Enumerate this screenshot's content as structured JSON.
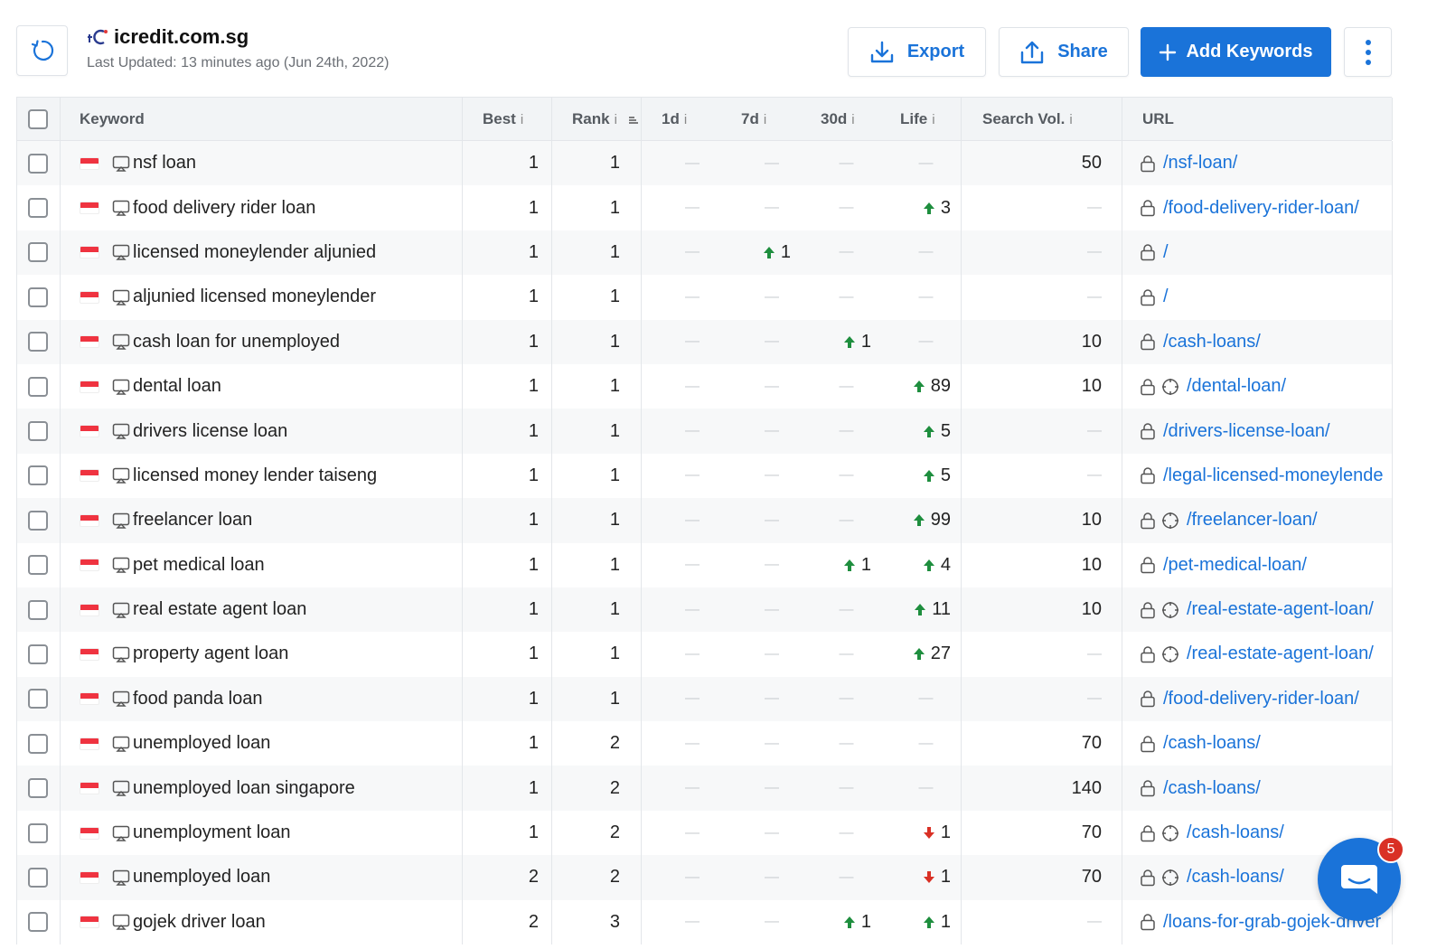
{
  "header": {
    "site_name": "icredit.com.sg",
    "last_updated": "Last Updated: 13 minutes ago (Jun 24th, 2022)",
    "export_label": "Export",
    "share_label": "Share",
    "add_keywords_label": "Add Keywords"
  },
  "colors": {
    "accent": "#1a73d9",
    "up": "#1e8e3e",
    "down": "#d93025"
  },
  "columns": {
    "keyword": "Keyword",
    "best": "Best",
    "rank": "Rank",
    "d1": "1d",
    "d7": "7d",
    "d30": "30d",
    "life": "Life",
    "search_vol": "Search Vol.",
    "url": "URL",
    "info_glyph": "i"
  },
  "dash": "—",
  "rows": [
    {
      "keyword": "nsf loan",
      "best": "1",
      "rank": "1",
      "d1": null,
      "d7": null,
      "d30": null,
      "life": null,
      "vol": "50",
      "url": "/nsf-loan/",
      "target": false
    },
    {
      "keyword": "food delivery rider loan",
      "best": "1",
      "rank": "1",
      "d1": null,
      "d7": null,
      "d30": null,
      "life": {
        "dir": "up",
        "val": "3"
      },
      "vol": null,
      "url": "/food-delivery-rider-loan/",
      "target": false
    },
    {
      "keyword": "licensed moneylender aljunied",
      "best": "1",
      "rank": "1",
      "d1": null,
      "d7": {
        "dir": "up",
        "val": "1"
      },
      "d30": null,
      "life": null,
      "vol": null,
      "url": "/",
      "target": false
    },
    {
      "keyword": "aljunied licensed moneylender",
      "best": "1",
      "rank": "1",
      "d1": null,
      "d7": null,
      "d30": null,
      "life": null,
      "vol": null,
      "url": "/",
      "target": false
    },
    {
      "keyword": "cash loan for unemployed",
      "best": "1",
      "rank": "1",
      "d1": null,
      "d7": null,
      "d30": {
        "dir": "up",
        "val": "1"
      },
      "life": null,
      "vol": "10",
      "url": "/cash-loans/",
      "target": false
    },
    {
      "keyword": "dental loan",
      "best": "1",
      "rank": "1",
      "d1": null,
      "d7": null,
      "d30": null,
      "life": {
        "dir": "up",
        "val": "89"
      },
      "vol": "10",
      "url": "/dental-loan/",
      "target": true
    },
    {
      "keyword": "drivers license loan",
      "best": "1",
      "rank": "1",
      "d1": null,
      "d7": null,
      "d30": null,
      "life": {
        "dir": "up",
        "val": "5"
      },
      "vol": null,
      "url": "/drivers-license-loan/",
      "target": false
    },
    {
      "keyword": "licensed money lender taiseng",
      "best": "1",
      "rank": "1",
      "d1": null,
      "d7": null,
      "d30": null,
      "life": {
        "dir": "up",
        "val": "5"
      },
      "vol": null,
      "url": "/legal-licensed-moneylende",
      "target": false
    },
    {
      "keyword": "freelancer loan",
      "best": "1",
      "rank": "1",
      "d1": null,
      "d7": null,
      "d30": null,
      "life": {
        "dir": "up",
        "val": "99"
      },
      "vol": "10",
      "url": "/freelancer-loan/",
      "target": true
    },
    {
      "keyword": "pet medical loan",
      "best": "1",
      "rank": "1",
      "d1": null,
      "d7": null,
      "d30": {
        "dir": "up",
        "val": "1"
      },
      "life": {
        "dir": "up",
        "val": "4"
      },
      "vol": "10",
      "url": "/pet-medical-loan/",
      "target": false
    },
    {
      "keyword": "real estate agent loan",
      "best": "1",
      "rank": "1",
      "d1": null,
      "d7": null,
      "d30": null,
      "life": {
        "dir": "up",
        "val": "11"
      },
      "vol": "10",
      "url": "/real-estate-agent-loan/",
      "target": true
    },
    {
      "keyword": "property agent loan",
      "best": "1",
      "rank": "1",
      "d1": null,
      "d7": null,
      "d30": null,
      "life": {
        "dir": "up",
        "val": "27"
      },
      "vol": null,
      "url": "/real-estate-agent-loan/",
      "target": true
    },
    {
      "keyword": "food panda loan",
      "best": "1",
      "rank": "1",
      "d1": null,
      "d7": null,
      "d30": null,
      "life": null,
      "vol": null,
      "url": "/food-delivery-rider-loan/",
      "target": false
    },
    {
      "keyword": "unemployed loan",
      "best": "1",
      "rank": "2",
      "d1": null,
      "d7": null,
      "d30": null,
      "life": null,
      "vol": "70",
      "url": "/cash-loans/",
      "target": false
    },
    {
      "keyword": "unemployed loan singapore",
      "best": "1",
      "rank": "2",
      "d1": null,
      "d7": null,
      "d30": null,
      "life": null,
      "vol": "140",
      "url": "/cash-loans/",
      "target": false
    },
    {
      "keyword": "unemployment loan",
      "best": "1",
      "rank": "2",
      "d1": null,
      "d7": null,
      "d30": null,
      "life": {
        "dir": "down",
        "val": "1"
      },
      "vol": "70",
      "url": "/cash-loans/",
      "target": true
    },
    {
      "keyword": "unemployed loan",
      "best": "2",
      "rank": "2",
      "d1": null,
      "d7": null,
      "d30": null,
      "life": {
        "dir": "down",
        "val": "1"
      },
      "vol": "70",
      "url": "/cash-loans/",
      "target": true
    },
    {
      "keyword": "gojek driver loan",
      "best": "2",
      "rank": "3",
      "d1": null,
      "d7": null,
      "d30": {
        "dir": "up",
        "val": "1"
      },
      "life": {
        "dir": "up",
        "val": "1"
      },
      "vol": null,
      "url": "/loans-for-grab-gojek-driver",
      "target": false
    }
  ],
  "support": {
    "badge_count": "5"
  }
}
